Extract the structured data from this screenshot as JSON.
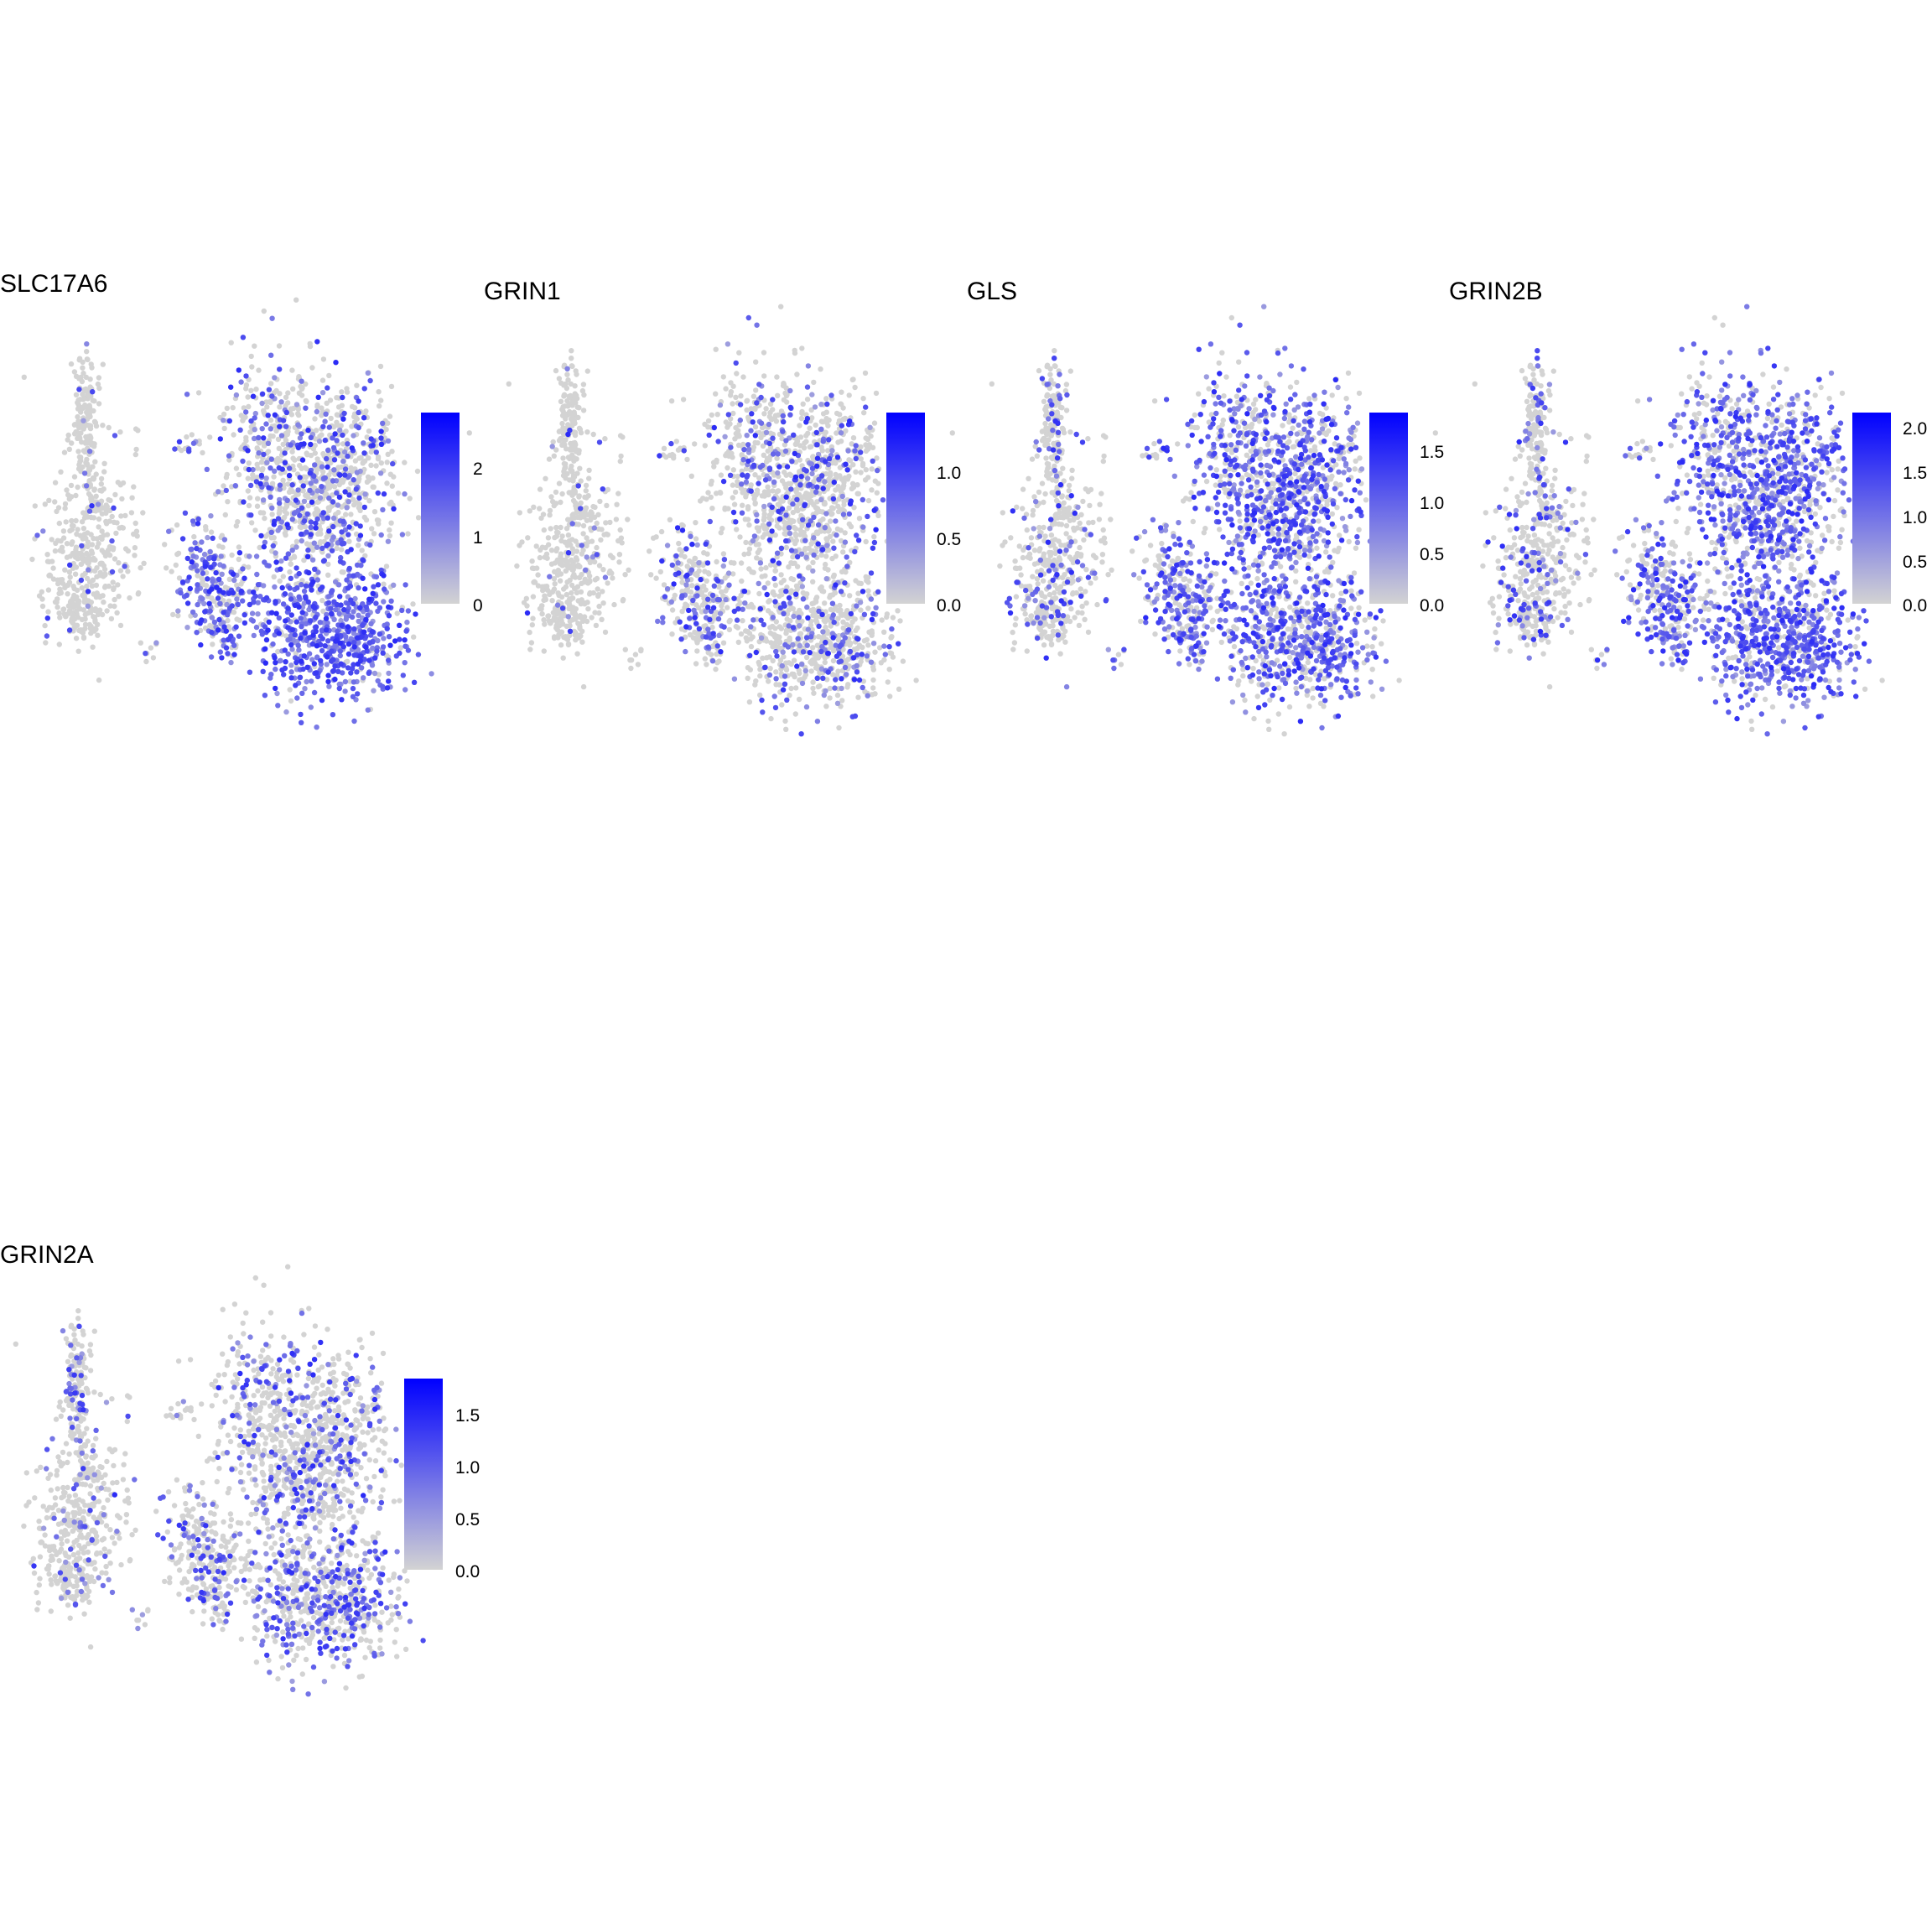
{
  "chart_data": [
    {
      "type": "scatter",
      "title": "SLC17A6",
      "color_low": "#d3d3d3",
      "color_high": "#0000ff",
      "colorbar": {
        "min": 0,
        "max": 2.75,
        "ticks": [
          "0",
          "1",
          "2"
        ],
        "tick_values": [
          0,
          1,
          2
        ]
      },
      "expression_pattern": "high in lower-right clusters"
    },
    {
      "type": "scatter",
      "title": "GRIN1",
      "color_low": "#d3d3d3",
      "color_high": "#0000ff",
      "colorbar": {
        "min": 0,
        "max": 1.45,
        "ticks": [
          "0.0",
          "0.5",
          "1.0"
        ],
        "tick_values": [
          0,
          0.5,
          1.0
        ]
      },
      "expression_pattern": "low, scattered"
    },
    {
      "type": "scatter",
      "title": "GLS",
      "color_low": "#d3d3d3",
      "color_high": "#0000ff",
      "colorbar": {
        "min": 0,
        "max": 1.85,
        "ticks": [
          "0.0",
          "0.5",
          "1.0",
          "1.5"
        ],
        "tick_values": [
          0,
          0.5,
          1.0,
          1.5
        ]
      },
      "expression_pattern": "broad, moderate"
    },
    {
      "type": "scatter",
      "title": "GRIN2B",
      "color_low": "#d3d3d3",
      "color_high": "#0000ff",
      "colorbar": {
        "min": 0,
        "max": 2.15,
        "ticks": [
          "0.0",
          "0.5",
          "1.0",
          "1.5",
          "2.0"
        ],
        "tick_values": [
          0,
          0.5,
          1.0,
          1.5,
          2.0
        ]
      },
      "expression_pattern": "broad, moderate-high"
    },
    {
      "type": "scatter",
      "title": "GRIN2A",
      "color_low": "#d3d3d3",
      "color_high": "#0000ff",
      "colorbar": {
        "min": 0,
        "max": 1.85,
        "ticks": [
          "0.0",
          "0.5",
          "1.0",
          "1.5"
        ],
        "tick_values": [
          0,
          0.5,
          1.0,
          1.5
        ]
      },
      "expression_pattern": "low, scattered"
    }
  ]
}
